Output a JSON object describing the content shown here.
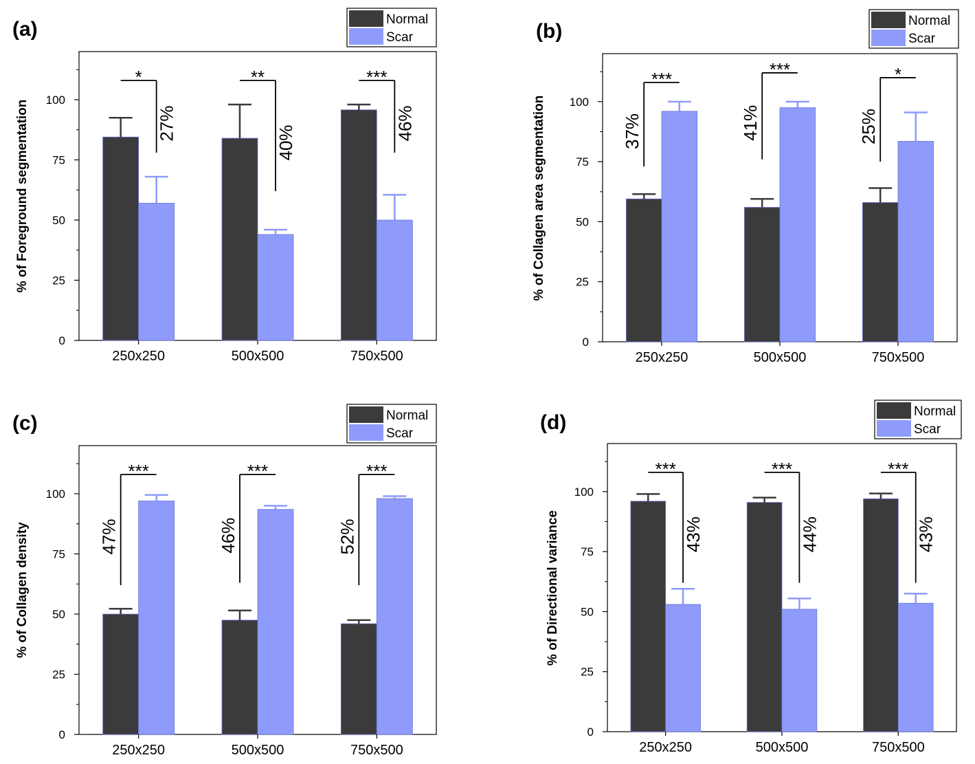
{
  "colors": {
    "normal": "#3b3b3b",
    "scar": "#8e9bfb",
    "axis": "#000000"
  },
  "chart_data": [
    {
      "type": "bar",
      "panel_label": "(a)",
      "ylabel": "% of Foreground segmentation",
      "ylim": [
        0,
        120
      ],
      "yticks": [
        0,
        25,
        50,
        75,
        100
      ],
      "ytick_labels": [
        "0",
        "25",
        "50",
        "75",
        "100"
      ],
      "categories": [
        "250x250",
        "500x500",
        "750x500"
      ],
      "series": [
        {
          "name": "Normal",
          "values": [
            84.5,
            84,
            95.8
          ],
          "errors": [
            8,
            14,
            2.2
          ]
        },
        {
          "name": "Scar",
          "values": [
            57,
            44,
            50
          ],
          "errors": [
            11,
            2,
            10.5
          ]
        }
      ],
      "legend": {
        "position": "top-right",
        "labels": [
          "Normal",
          "Scar"
        ]
      },
      "annotations": [
        {
          "stars": "*",
          "percent": "27%",
          "pct_side": "right",
          "y_top": 108,
          "y_bottom": 78
        },
        {
          "stars": "**",
          "percent": "40%",
          "pct_side": "right",
          "y_top": 108,
          "y_bottom": 62
        },
        {
          "stars": "***",
          "percent": "46%",
          "pct_side": "right",
          "y_top": 108,
          "y_bottom": 78
        }
      ]
    },
    {
      "type": "bar",
      "panel_label": "(b)",
      "ylabel": "% of Collagen area segmentation",
      "ylim": [
        0,
        120
      ],
      "yticks": [
        0,
        25,
        50,
        75,
        100
      ],
      "ytick_labels": [
        "0",
        "25",
        "50",
        "75",
        "100"
      ],
      "categories": [
        "250x250",
        "500x500",
        "750x500"
      ],
      "series": [
        {
          "name": "Normal",
          "values": [
            59.5,
            56,
            58
          ],
          "errors": [
            2,
            3.5,
            6
          ]
        },
        {
          "name": "Scar",
          "values": [
            96,
            97.5,
            83.5
          ],
          "errors": [
            4,
            2.5,
            12
          ]
        }
      ],
      "legend": {
        "position": "top-right",
        "labels": [
          "Normal",
          "Scar"
        ]
      },
      "annotations": [
        {
          "stars": "***",
          "percent": "37%",
          "pct_side": "left",
          "y_top": 108,
          "y_bottom": 73
        },
        {
          "stars": "***",
          "percent": "41%",
          "pct_side": "left",
          "y_top": 112,
          "y_bottom": 76
        },
        {
          "stars": "*",
          "percent": "25%",
          "pct_side": "left",
          "y_top": 110,
          "y_bottom": 75
        }
      ]
    },
    {
      "type": "bar",
      "panel_label": "(c)",
      "ylabel": "% of Collagen density",
      "ylim": [
        0,
        120
      ],
      "yticks": [
        0,
        25,
        50,
        75,
        100
      ],
      "ytick_labels": [
        "0",
        "25",
        "50",
        "75",
        "100"
      ],
      "categories": [
        "250x250",
        "500x500",
        "750x500"
      ],
      "series": [
        {
          "name": "Normal",
          "values": [
            50,
            47.5,
            46
          ],
          "errors": [
            2.2,
            4,
            1.5
          ]
        },
        {
          "name": "Scar",
          "values": [
            97,
            93.5,
            98
          ],
          "errors": [
            2.5,
            1.5,
            1
          ]
        }
      ],
      "legend": {
        "position": "top-right",
        "labels": [
          "Normal",
          "Scar"
        ]
      },
      "annotations": [
        {
          "stars": "***",
          "percent": "47%",
          "pct_side": "left",
          "y_top": 108,
          "y_bottom": 62
        },
        {
          "stars": "***",
          "percent": "46%",
          "pct_side": "left",
          "y_top": 108,
          "y_bottom": 63
        },
        {
          "stars": "***",
          "percent": "52%",
          "pct_side": "left",
          "y_top": 108,
          "y_bottom": 62
        }
      ]
    },
    {
      "type": "bar",
      "panel_label": "(d)",
      "ylabel": "% of Directional variance",
      "ylim": [
        0,
        120
      ],
      "yticks": [
        0,
        25,
        50,
        75,
        100
      ],
      "ytick_labels": [
        "0",
        "25",
        "50",
        "75",
        "100"
      ],
      "categories": [
        "250x250",
        "500x500",
        "750x500"
      ],
      "series": [
        {
          "name": "Normal",
          "values": [
            96,
            95.5,
            97
          ],
          "errors": [
            3,
            2,
            2.2
          ]
        },
        {
          "name": "Scar",
          "values": [
            53,
            51,
            53.5
          ],
          "errors": [
            6.5,
            4.5,
            4
          ]
        }
      ],
      "legend": {
        "position": "top-right",
        "labels": [
          "Normal",
          "Scar"
        ]
      },
      "annotations": [
        {
          "stars": "***",
          "percent": "43%",
          "pct_side": "right",
          "y_top": 108,
          "y_bottom": 62
        },
        {
          "stars": "***",
          "percent": "44%",
          "pct_side": "right",
          "y_top": 108,
          "y_bottom": 62
        },
        {
          "stars": "***",
          "percent": "43%",
          "pct_side": "right",
          "y_top": 108,
          "y_bottom": 62
        }
      ]
    }
  ]
}
